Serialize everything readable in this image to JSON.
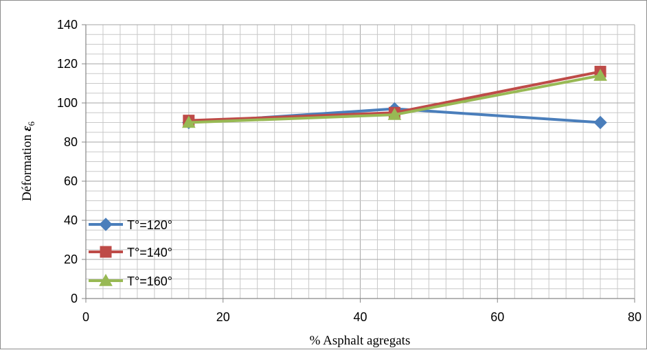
{
  "chart_data": {
    "type": "line",
    "title": "",
    "xlabel": "% Asphalt agregats",
    "ylabel_main": "Déformation ",
    "ylabel_symbol": "ε",
    "ylabel_subscript": "6",
    "xlim": [
      0,
      80
    ],
    "ylim": [
      0,
      140
    ],
    "xticks": [
      "0",
      "20",
      "40",
      "60",
      "80"
    ],
    "yticks": [
      "0",
      "20",
      "40",
      "60",
      "80",
      "100",
      "120",
      "140"
    ],
    "x_tick_values": [
      0,
      20,
      40,
      60,
      80
    ],
    "y_tick_values": [
      0,
      20,
      40,
      60,
      80,
      100,
      120,
      140
    ],
    "x_minor_step": 2.5,
    "y_minor_step": 5,
    "grid": true,
    "legend_position": "bottom-left",
    "series": [
      {
        "name": "T°=120°",
        "color": "#4a7ebb",
        "marker": "diamond",
        "points": [
          [
            15,
            90
          ],
          [
            45,
            97
          ],
          [
            75,
            90
          ]
        ]
      },
      {
        "name": "T°=140°",
        "color": "#be4b48",
        "marker": "square",
        "points": [
          [
            15,
            91
          ],
          [
            45,
            95
          ],
          [
            75,
            116
          ]
        ]
      },
      {
        "name": "T°=160°",
        "color": "#98b954",
        "marker": "triangle",
        "points": [
          [
            15,
            90
          ],
          [
            45,
            94
          ],
          [
            75,
            114
          ]
        ]
      }
    ]
  }
}
